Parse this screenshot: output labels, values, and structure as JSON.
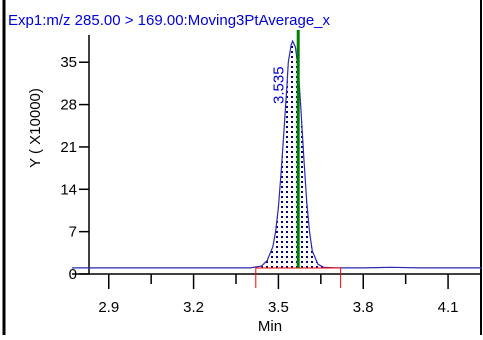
{
  "chart_data": {
    "type": "line",
    "title": "Exp1:m/z 285.00 > 169.00:Moving3PtAverage_x",
    "xlabel": "Min",
    "ylabel": "Y ( X10000)",
    "x_ticks": [
      "2.9",
      "3.2",
      "3.5",
      "3.8",
      "4.1"
    ],
    "y_ticks": [
      "0",
      "7",
      "14",
      "21",
      "28",
      "35"
    ],
    "xlim": [
      2.77,
      4.22
    ],
    "ylim": [
      0,
      39.5
    ],
    "peak_label": "3.535",
    "peak_marker_x": 3.57,
    "integration_start": 3.42,
    "integration_end": 3.72,
    "series": [
      {
        "x": [
          2.77,
          2.9,
          3.0,
          3.1,
          3.2,
          3.3,
          3.4,
          3.44,
          3.46,
          3.48,
          3.49,
          3.5,
          3.51,
          3.52,
          3.53,
          3.535,
          3.545,
          3.55,
          3.56,
          3.57,
          3.58,
          3.59,
          3.6,
          3.61,
          3.62,
          3.64,
          3.66,
          3.7,
          3.8,
          3.9,
          4.0,
          4.1,
          4.22
        ],
        "y": [
          1.0,
          1.0,
          1.0,
          1.0,
          1.0,
          1.0,
          1.0,
          1.3,
          2.2,
          4.5,
          7.0,
          11.0,
          17.0,
          24.0,
          31.0,
          35.0,
          37.8,
          38.5,
          37.5,
          34.0,
          27.0,
          19.0,
          12.0,
          7.0,
          3.8,
          1.6,
          1.1,
          1.0,
          1.0,
          1.1,
          1.0,
          1.0,
          1.0
        ]
      }
    ],
    "colors": {
      "title": "#0000dd",
      "series": "#2a2ab0",
      "peak_marker": "#008000",
      "integration": "#ff0000",
      "fill": "#000080",
      "axis": "#000000"
    }
  }
}
